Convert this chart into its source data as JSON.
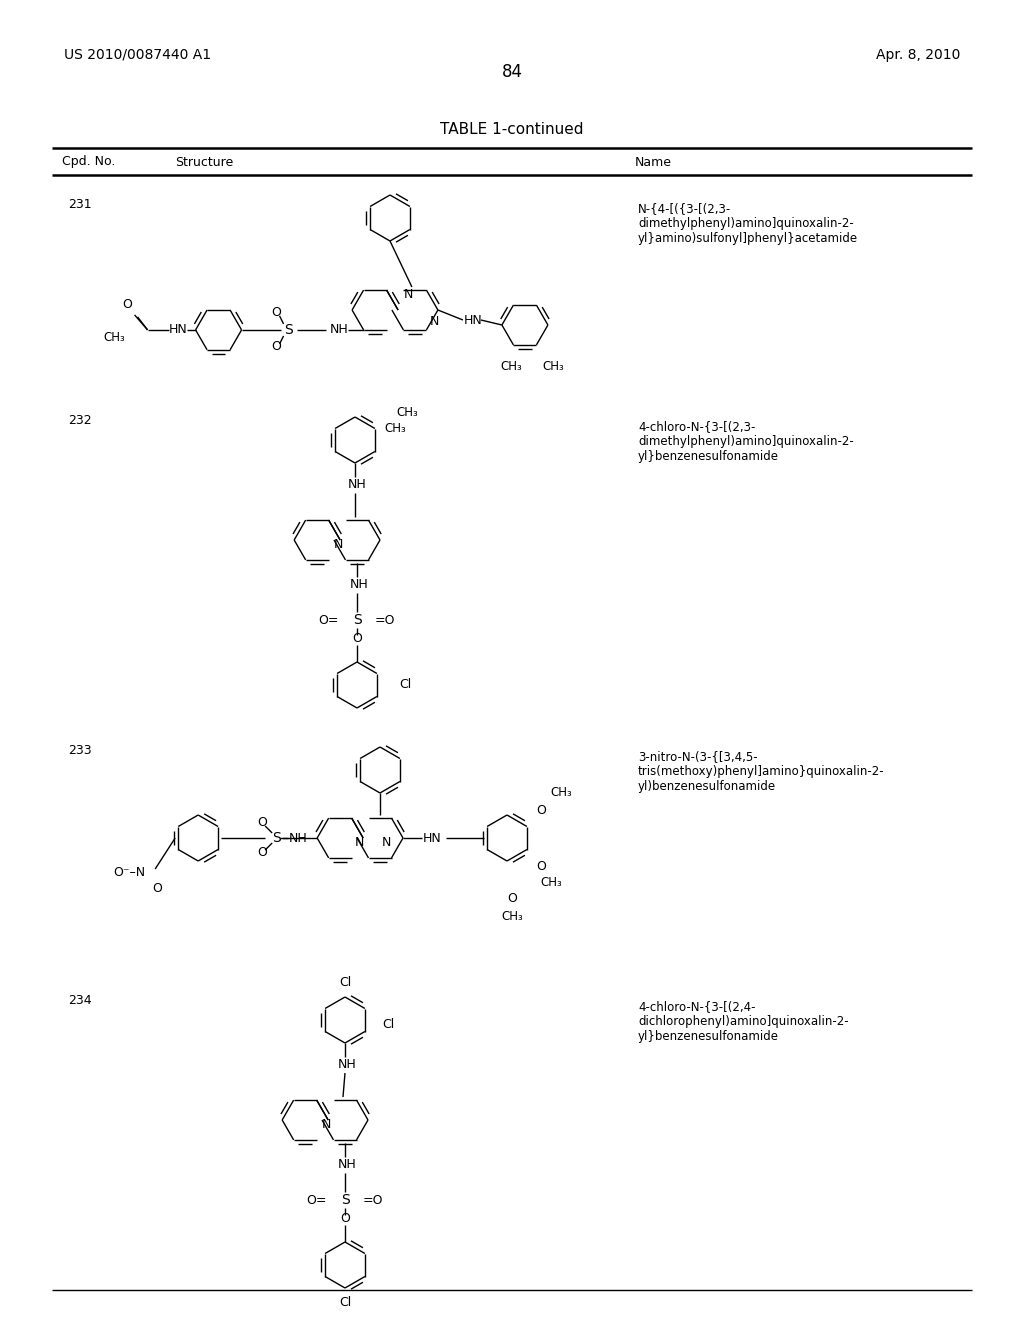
{
  "page_number": "84",
  "left_header": "US 2010/0087440 A1",
  "right_header": "Apr. 8, 2010",
  "table_title": "TABLE 1-continued",
  "col1_header": "Cpd. No.",
  "col2_header": "Structure",
  "col3_header": "Name",
  "background_color": "#ffffff",
  "text_color": "#000000",
  "compound_numbers": [
    "231",
    "232",
    "233",
    "234"
  ],
  "compound_names": [
    "N-{4-[({3-[(2,3-\ndimethylphenyl)amino]quinoxalin-2-\nyl}amino)sulfonyl]phenyl}acetamide",
    "4-chloro-N-{3-[(2,3-\ndimethylphenyl)amino]quinoxalin-2-\nyl}benzenesulfonamide",
    "3-nitro-N-(3-{[3,4,5-\ntris(methoxy)phenyl]amino}quinoxalin-2-\nyl)benzenesulfonamide",
    "4-chloro-N-{3-[(2,4-\ndichlorophenyl)amino]quinoxalin-2-\nyl}benzenesulfonamide"
  ],
  "lw": 1.0,
  "lw_thick": 1.8
}
